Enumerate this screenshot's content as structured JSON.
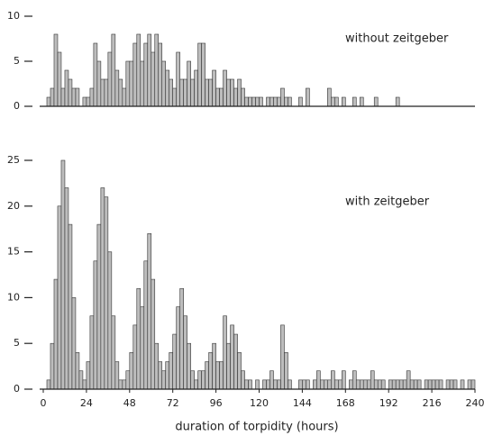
{
  "chart_data": [
    {
      "type": "histogram",
      "annotation": "without zeitgeber",
      "color": "#bdbdbd",
      "bins": [
        0,
        2,
        4,
        6,
        8,
        10,
        12,
        14,
        16,
        18,
        20,
        22,
        24,
        26,
        28,
        30,
        32,
        34,
        36,
        38,
        40,
        42,
        44,
        46,
        48,
        50,
        52,
        54,
        56,
        58,
        60,
        62,
        64,
        66,
        68,
        70,
        72,
        74,
        76,
        78,
        80,
        82,
        84,
        86,
        88,
        90,
        92,
        94,
        96,
        98,
        100,
        102,
        104,
        106,
        108,
        110,
        112,
        114,
        116,
        118,
        120,
        122,
        124,
        126,
        128,
        130,
        132,
        134,
        136,
        138,
        140,
        142,
        144,
        146,
        148,
        150,
        152,
        154,
        156,
        158,
        160,
        162,
        164,
        166,
        168,
        170,
        172,
        174,
        176,
        178,
        180,
        182,
        184,
        186,
        188,
        190,
        192,
        194,
        196,
        198,
        200,
        202,
        204,
        206,
        208,
        210,
        212,
        214,
        216,
        218,
        220,
        222,
        224,
        226,
        228,
        230,
        232,
        234,
        236,
        238,
        240
      ],
      "counts": [
        0,
        1,
        2,
        8,
        6,
        2,
        4,
        3,
        2,
        2,
        0,
        1,
        1,
        2,
        7,
        5,
        3,
        3,
        6,
        8,
        4,
        3,
        2,
        5,
        5,
        7,
        8,
        5,
        7,
        8,
        6,
        8,
        7,
        5,
        4,
        3,
        2,
        6,
        3,
        3,
        5,
        3,
        4,
        7,
        7,
        3,
        3,
        4,
        2,
        2,
        4,
        3,
        3,
        2,
        3,
        2,
        1,
        1,
        1,
        1,
        1,
        0,
        1,
        1,
        1,
        1,
        2,
        1,
        1,
        0,
        0,
        1,
        0,
        2,
        0,
        0,
        0,
        0,
        0,
        2,
        1,
        1,
        0,
        1,
        0,
        0,
        1,
        0,
        1,
        0,
        0,
        0,
        1,
        0,
        0,
        0,
        0,
        0,
        1,
        0,
        0,
        0,
        0,
        0,
        0,
        0,
        0,
        0,
        0,
        0,
        0,
        0,
        0,
        0,
        0,
        0,
        0,
        0,
        0,
        0
      ],
      "xlim": [
        0,
        240
      ],
      "ylim": [
        0,
        10
      ],
      "yticks": [
        0,
        5,
        10
      ]
    },
    {
      "type": "histogram",
      "annotation": "with zeitgeber",
      "color": "#bdbdbd",
      "bins": [
        0,
        2,
        4,
        6,
        8,
        10,
        12,
        14,
        16,
        18,
        20,
        22,
        24,
        26,
        28,
        30,
        32,
        34,
        36,
        38,
        40,
        42,
        44,
        46,
        48,
        50,
        52,
        54,
        56,
        58,
        60,
        62,
        64,
        66,
        68,
        70,
        72,
        74,
        76,
        78,
        80,
        82,
        84,
        86,
        88,
        90,
        92,
        94,
        96,
        98,
        100,
        102,
        104,
        106,
        108,
        110,
        112,
        114,
        116,
        118,
        120,
        122,
        124,
        126,
        128,
        130,
        132,
        134,
        136,
        138,
        140,
        142,
        144,
        146,
        148,
        150,
        152,
        154,
        156,
        158,
        160,
        162,
        164,
        166,
        168,
        170,
        172,
        174,
        176,
        178,
        180,
        182,
        184,
        186,
        188,
        190,
        192,
        194,
        196,
        198,
        200,
        202,
        204,
        206,
        208,
        210,
        212,
        214,
        216,
        218,
        220,
        222,
        224,
        226,
        228,
        230,
        232,
        234,
        236,
        238,
        240
      ],
      "counts": [
        0,
        1,
        5,
        12,
        20,
        25,
        22,
        18,
        10,
        4,
        2,
        1,
        3,
        8,
        14,
        18,
        22,
        21,
        15,
        8,
        3,
        1,
        1,
        2,
        4,
        7,
        11,
        9,
        14,
        17,
        12,
        5,
        3,
        2,
        3,
        4,
        6,
        9,
        11,
        8,
        5,
        2,
        1,
        2,
        2,
        3,
        4,
        5,
        3,
        3,
        8,
        5,
        7,
        6,
        4,
        2,
        1,
        1,
        0,
        1,
        0,
        1,
        1,
        2,
        1,
        1,
        7,
        4,
        1,
        0,
        0,
        1,
        1,
        1,
        0,
        1,
        2,
        1,
        1,
        1,
        2,
        1,
        1,
        2,
        0,
        1,
        2,
        1,
        1,
        1,
        1,
        2,
        1,
        1,
        1,
        0,
        1,
        1,
        1,
        1,
        1,
        2,
        1,
        1,
        1,
        0,
        1,
        1,
        1,
        1,
        1,
        0,
        1,
        1,
        1,
        0,
        1,
        0,
        1,
        1
      ],
      "xlim": [
        0,
        240
      ],
      "ylim": [
        0,
        25
      ],
      "yticks": [
        0,
        5,
        10,
        15,
        20,
        25
      ],
      "xticks": [
        0,
        24,
        48,
        72,
        96,
        120,
        144,
        168,
        192,
        216,
        240
      ],
      "xlabel": "duration of torpidity   (hours)"
    }
  ]
}
